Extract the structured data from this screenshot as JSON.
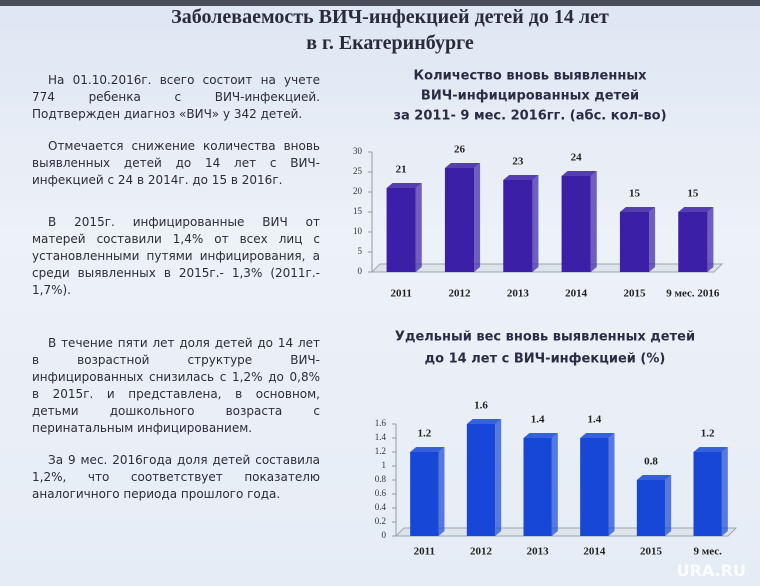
{
  "title": [
    "Заболеваемость ВИЧ-инфекцией детей до 14 лет",
    "в г. Екатеринбурге"
  ],
  "paragraphs": [
    "На 01.10.2016г. всего состоит на учете 774 ребенка с ВИЧ-инфекцией. Подтвержден диагноз «ВИЧ» у 342 детей.",
    "Отмечается снижение количества вновь выявленных детей до 14 лет с ВИЧ-инфекцией с 24 в 2014г. до 15 в 2016г.",
    "В 2015г. инфицированные ВИЧ от матерей составили 1,4% от всех лиц с установленными путями инфицирования, а среди выявленных в 2015г.- 1,3% (2011г.- 1,7%).",
    "В течение пяти лет доля детей до 14 лет в возрастной структуре ВИЧ-инфицированных снизилась с 1,2% до 0,8% в 2015г. и представлена, в основном, детьми дошкольного возраста с перинатальным инфицированием.",
    "За 9 мес. 2016года доля детей составила 1,2%, что соответствует показателю аналогичного периода прошлого года."
  ],
  "watermark": "URA.RU",
  "chart_data": [
    {
      "type": "bar",
      "title": [
        "Количество вновь выявленных",
        "ВИЧ-инфицированных детей",
        "за 2011- 9 мес. 2016гг. (абс. кол-во)"
      ],
      "categories": [
        "2011",
        "2012",
        "2013",
        "2014",
        "2015",
        "9 мес. 2016"
      ],
      "values": [
        21,
        26,
        23,
        24,
        15,
        15
      ],
      "color": "#3b1fa6",
      "ylim": [
        0,
        30
      ],
      "yticks": [
        0,
        5,
        10,
        15,
        20,
        25,
        30
      ]
    },
    {
      "type": "bar",
      "title": [
        "Удельный вес вновь выявленных детей",
        "до 14 лет с ВИЧ-инфекцией (%)"
      ],
      "categories": [
        "2011",
        "2012",
        "2013",
        "2014",
        "2015",
        "9 мес."
      ],
      "values": [
        1.2,
        1.6,
        1.4,
        1.4,
        0.8,
        1.2
      ],
      "color": "#1747d6",
      "ylim": [
        0,
        1.6
      ],
      "yticks": [
        0,
        0.2,
        0.4,
        0.6,
        0.8,
        1,
        1.2,
        1.4,
        1.6
      ]
    }
  ]
}
